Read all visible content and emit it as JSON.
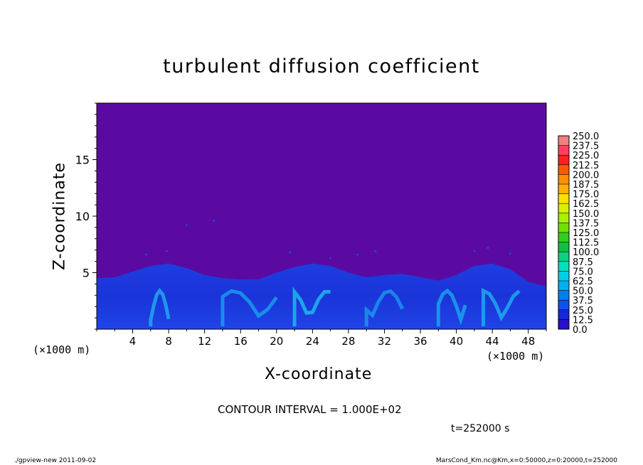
{
  "chart_data": {
    "type": "heatmap",
    "title": "turbulent diffusion coefficient",
    "xlabel": "X-coordinate",
    "ylabel": "Z-coordinate",
    "x_scale_left": "(×1000 m)",
    "x_scale_right": "(×1000 m)",
    "xlim": [
      0,
      50
    ],
    "ylim": [
      0,
      20
    ],
    "x_ticks": [
      4,
      8,
      12,
      16,
      20,
      24,
      28,
      32,
      36,
      40,
      44,
      48
    ],
    "y_ticks": [
      5,
      10,
      15
    ],
    "background_value": 0,
    "turbulent_layer_top_km": [
      [
        0,
        4.5
      ],
      [
        2,
        4.6
      ],
      [
        4,
        5.1
      ],
      [
        6,
        5.6
      ],
      [
        8,
        5.8
      ],
      [
        10,
        5.4
      ],
      [
        12,
        4.8
      ],
      [
        14,
        4.5
      ],
      [
        16,
        4.4
      ],
      [
        18,
        4.4
      ],
      [
        20,
        5.0
      ],
      [
        22,
        5.5
      ],
      [
        24,
        5.8
      ],
      [
        26,
        5.6
      ],
      [
        28,
        5.0
      ],
      [
        30,
        4.6
      ],
      [
        32,
        4.8
      ],
      [
        34,
        4.9
      ],
      [
        36,
        4.6
      ],
      [
        38,
        4.3
      ],
      [
        40,
        4.8
      ],
      [
        42,
        5.6
      ],
      [
        44,
        5.8
      ],
      [
        46,
        5.3
      ],
      [
        48,
        4.2
      ],
      [
        50,
        3.8
      ]
    ],
    "colorbar": {
      "levels": [
        "250.0",
        "237.5",
        "225.0",
        "212.5",
        "200.0",
        "187.5",
        "175.0",
        "162.5",
        "150.0",
        "137.5",
        "125.0",
        "112.5",
        "100.0",
        "87.5",
        "75.0",
        "62.5",
        "50.0",
        "37.5",
        "25.0",
        "12.5",
        "0.0"
      ],
      "colors": [
        "#f08080",
        "#ff4060",
        "#ff2020",
        "#ff5a00",
        "#ff9000",
        "#ffb000",
        "#ffe000",
        "#d8f000",
        "#a8f000",
        "#70e000",
        "#30d020",
        "#10c040",
        "#10d080",
        "#00e0c0",
        "#00d0e8",
        "#00b0f0",
        "#0080f0",
        "#1050f0",
        "#1828d8",
        "#2810c8",
        "#5a0aa0"
      ]
    },
    "contour_interval": "CONTOUR INTERVAL = 1.000E+02",
    "time_label": "t=252000  s",
    "footer_left": "./gpview-new   2011-09-02",
    "footer_right": "MarsCond_Km.nc@Km,x=0:50000,z=0:20000,t=252000"
  }
}
